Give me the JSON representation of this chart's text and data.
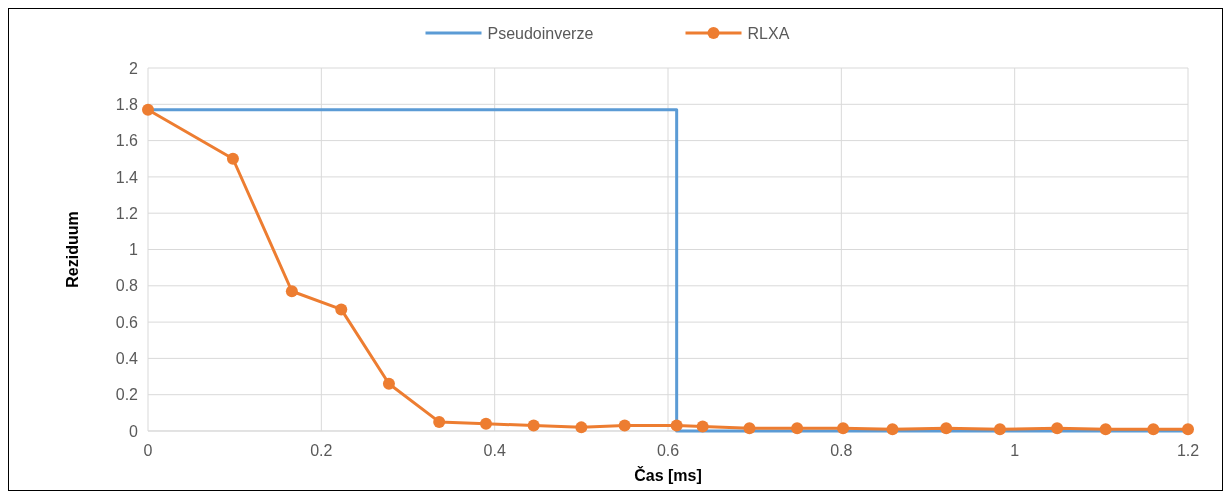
{
  "chart_data": {
    "type": "line",
    "xlabel": "Čas [ms]",
    "ylabel": "Reziduum",
    "xlim": [
      0,
      1.2
    ],
    "xticks": [
      0,
      0.2,
      0.4,
      0.6,
      0.8,
      1,
      1.2
    ],
    "ylim": [
      0,
      2
    ],
    "yticks": [
      0,
      0.2,
      0.4,
      0.6,
      0.8,
      1,
      1.2,
      1.4,
      1.6,
      1.8,
      2
    ],
    "grid": true,
    "legend": "top",
    "series": [
      {
        "name": "Pseudoinverze",
        "color": "#5b9bd5",
        "marker": "none",
        "x": [
          0,
          0.61,
          0.61,
          1.2
        ],
        "values": [
          1.77,
          1.77,
          0,
          0
        ]
      },
      {
        "name": "RLXA",
        "color": "#ed7d31",
        "marker": "circle",
        "x": [
          0,
          0.098,
          0.166,
          0.223,
          0.278,
          0.336,
          0.39,
          0.445,
          0.5,
          0.55,
          0.61,
          0.64,
          0.694,
          0.749,
          0.802,
          0.859,
          0.921,
          0.983,
          1.049,
          1.105,
          1.16,
          1.2
        ],
        "values": [
          1.77,
          1.5,
          0.77,
          0.67,
          0.26,
          0.05,
          0.04,
          0.03,
          0.02,
          0.03,
          0.03,
          0.025,
          0.015,
          0.015,
          0.015,
          0.01,
          0.015,
          0.01,
          0.015,
          0.01,
          0.01,
          0.01
        ]
      }
    ]
  }
}
